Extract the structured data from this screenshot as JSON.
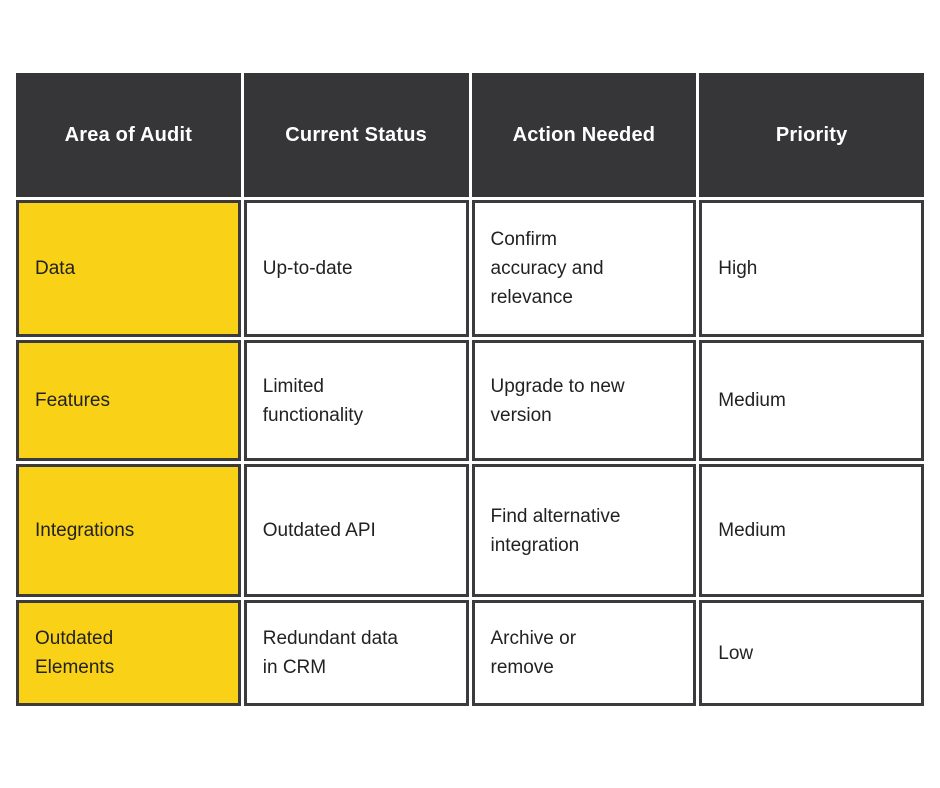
{
  "chart_data": {
    "type": "table",
    "columns": [
      "Area of Audit",
      "Current Status",
      "Action Needed",
      "Priority"
    ],
    "rows": [
      [
        "Data",
        "Up-to-date",
        "Confirm\naccuracy and\nrelevance",
        "High"
      ],
      [
        "Features",
        "Limited\nfunctionality",
        "Upgrade to new\nversion",
        "Medium"
      ],
      [
        "Integrations",
        "Outdated API",
        "Find alternative\nintegration",
        "Medium"
      ],
      [
        "Outdated\nElements",
        "Redundant data\nin CRM",
        "Archive or\nremove",
        "Low"
      ]
    ],
    "layout": {
      "legend": "none",
      "grid": "cell-borders",
      "header_position": "top"
    },
    "colors": {
      "page_bg": "#FFFFFF",
      "header_bg": "#363537",
      "header_text": "#FFFFFF",
      "area_column_bg": "#F9D116",
      "cell_bg": "#FFFFFF",
      "border": "#3B3A3C",
      "body_text": "#222222"
    }
  }
}
